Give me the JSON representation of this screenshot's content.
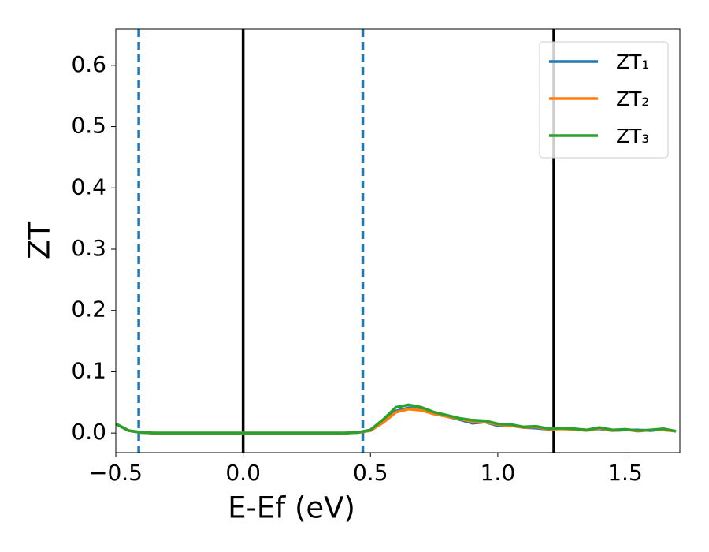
{
  "chart_data": {
    "type": "line",
    "xlabel": "E-Ef (eV)",
    "ylabel": "ZT",
    "x": [
      -0.5,
      -0.45,
      -0.4,
      -0.35,
      -0.3,
      -0.25,
      -0.2,
      -0.15,
      -0.1,
      -0.05,
      0.0,
      0.05,
      0.1,
      0.15,
      0.2,
      0.25,
      0.3,
      0.35,
      0.4,
      0.45,
      0.5,
      0.55,
      0.6,
      0.65,
      0.7,
      0.75,
      0.8,
      0.85,
      0.9,
      0.95,
      1.0,
      1.05,
      1.1,
      1.15,
      1.2,
      1.25,
      1.3,
      1.35,
      1.4,
      1.45,
      1.5,
      1.55,
      1.6,
      1.65,
      1.7
    ],
    "series": [
      {
        "name": "ZT₁",
        "color": "#1f77b4",
        "values": [
          0.015,
          0.004,
          0.001,
          0,
          0,
          0,
          0,
          0,
          0,
          0,
          0,
          0,
          0,
          0,
          0,
          0,
          0,
          0,
          0,
          0.001,
          0.004,
          0.018,
          0.036,
          0.041,
          0.038,
          0.032,
          0.027,
          0.022,
          0.016,
          0.018,
          0.012,
          0.013,
          0.009,
          0.008,
          0.006,
          0.008,
          0.006,
          0.005,
          0.007,
          0.004,
          0.005,
          0.005,
          0.004,
          0.006,
          0.003
        ]
      },
      {
        "name": "ZT₂",
        "color": "#ff7f0e",
        "values": [
          0.015,
          0.004,
          0.001,
          0,
          0,
          0,
          0,
          0,
          0,
          0,
          0,
          0,
          0,
          0,
          0,
          0,
          0,
          0,
          0,
          0.001,
          0.004,
          0.017,
          0.034,
          0.039,
          0.037,
          0.031,
          0.027,
          0.023,
          0.019,
          0.018,
          0.014,
          0.012,
          0.009,
          0.01,
          0.006,
          0.007,
          0.006,
          0.004,
          0.008,
          0.004,
          0.006,
          0.003,
          0.005,
          0.005,
          0.003
        ]
      },
      {
        "name": "ZT₃",
        "color": "#2ca02c",
        "values": [
          0.015,
          0.004,
          0.001,
          0,
          0,
          0,
          0,
          0,
          0,
          0,
          0,
          0,
          0,
          0,
          0,
          0,
          0,
          0,
          0,
          0.001,
          0.005,
          0.022,
          0.042,
          0.046,
          0.042,
          0.034,
          0.029,
          0.024,
          0.021,
          0.02,
          0.015,
          0.014,
          0.01,
          0.011,
          0.007,
          0.008,
          0.007,
          0.005,
          0.009,
          0.005,
          0.006,
          0.004,
          0.005,
          0.007,
          0.003
        ]
      }
    ],
    "vlines": [
      {
        "x": -0.41,
        "color": "#1f77b4",
        "dashed": true
      },
      {
        "x": 0.0,
        "color": "#000000",
        "dashed": false
      },
      {
        "x": 0.47,
        "color": "#1f77b4",
        "dashed": true
      },
      {
        "x": 1.22,
        "color": "#000000",
        "dashed": false
      }
    ],
    "xlim": [
      -0.5,
      1.715
    ],
    "ylim": [
      -0.032,
      0.659
    ],
    "xticks": [
      {
        "value": -0.5,
        "label": "−0.5"
      },
      {
        "value": 0.0,
        "label": "0.0"
      },
      0.5,
      {
        "value": 1.0,
        "label": "1.0"
      },
      1.5
    ],
    "yticks": [
      {
        "value": 0.0,
        "label": "0.0"
      },
      0.1,
      0.2,
      0.3,
      0.4,
      0.5,
      0.6
    ],
    "legend": "upper right",
    "grid": false
  }
}
